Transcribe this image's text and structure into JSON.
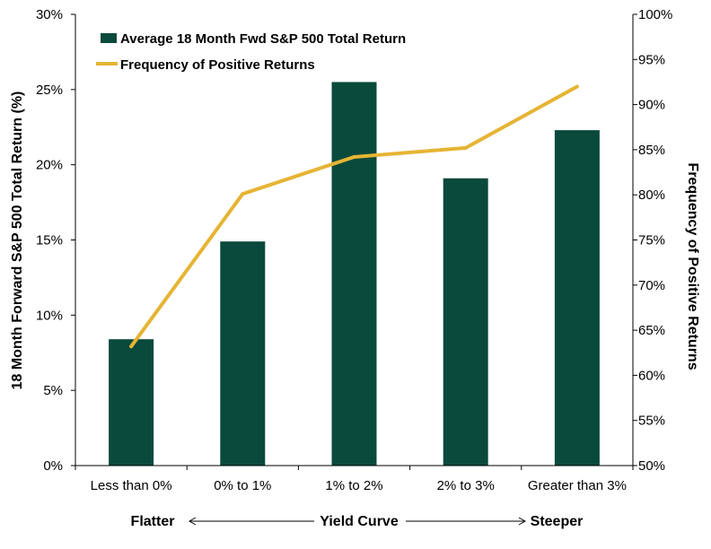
{
  "chart_data": {
    "type": "bar",
    "categories": [
      "Less than 0%",
      "0% to 1%",
      "1% to 2%",
      "2% to 3%",
      "Greater than 3%"
    ],
    "series": [
      {
        "name": "Average 18 Month Fwd S&P 500 Total Return",
        "type": "bar",
        "axis": "left",
        "values": [
          8.4,
          14.9,
          25.5,
          19.1,
          22.3
        ],
        "color": "#0a4a3c"
      },
      {
        "name": "Frequency of Positive Returns",
        "type": "line",
        "axis": "right",
        "values": [
          63.2,
          80.1,
          84.2,
          85.2,
          92.0
        ],
        "color": "#e6b434"
      }
    ],
    "ylabel": "18 Month Forward S&P 500 Total Return (%)",
    "y2label": "Frequency of Positive Returns",
    "ylim": [
      0,
      30
    ],
    "y2lim": [
      50,
      100
    ],
    "yticks": [
      "0%",
      "5%",
      "10%",
      "15%",
      "20%",
      "25%",
      "30%"
    ],
    "y2ticks": [
      "50%",
      "55%",
      "60%",
      "65%",
      "70%",
      "75%",
      "80%",
      "85%",
      "90%",
      "95%",
      "100%"
    ],
    "grid": false,
    "legend": "top-left"
  },
  "footer": {
    "left": "Flatter",
    "center": "Yield Curve",
    "right": "Steeper"
  }
}
